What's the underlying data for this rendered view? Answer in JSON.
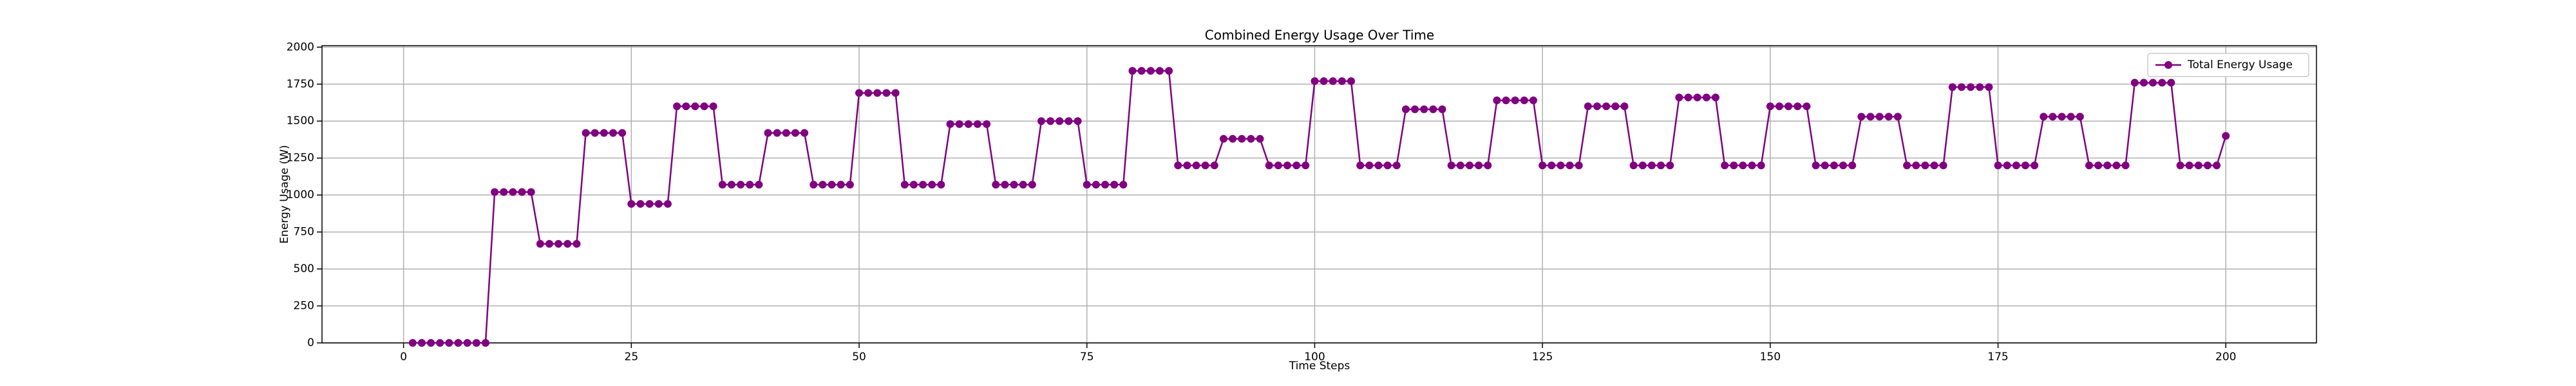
{
  "chart_data": {
    "type": "line",
    "title": "Combined Energy Usage Over Time",
    "x_label": "Time Steps",
    "y_label": "Energy Usage (W)",
    "x": [
      1,
      2,
      3,
      4,
      5,
      6,
      7,
      8,
      9,
      10,
      11,
      12,
      13,
      14,
      15,
      16,
      17,
      18,
      19,
      20,
      21,
      22,
      23,
      24,
      25,
      26,
      27,
      28,
      29,
      30,
      31,
      32,
      33,
      34,
      35,
      36,
      37,
      38,
      39,
      40,
      41,
      42,
      43,
      44,
      45,
      46,
      47,
      48,
      49,
      50,
      51,
      52,
      53,
      54,
      55,
      56,
      57,
      58,
      59,
      60,
      61,
      62,
      63,
      64,
      65,
      66,
      67,
      68,
      69,
      70,
      71,
      72,
      73,
      74,
      75,
      76,
      77,
      78,
      79,
      80,
      81,
      82,
      83,
      84,
      85,
      86,
      87,
      88,
      89,
      90,
      91,
      92,
      93,
      94,
      95,
      96,
      97,
      98,
      99,
      100,
      101,
      102,
      103,
      104,
      105,
      106,
      107,
      108,
      109,
      110,
      111,
      112,
      113,
      114,
      115,
      116,
      117,
      118,
      119,
      120,
      121,
      122,
      123,
      124,
      125,
      126,
      127,
      128,
      129,
      130,
      131,
      132,
      133,
      134,
      135,
      136,
      137,
      138,
      139,
      140,
      141,
      142,
      143,
      144,
      145,
      146,
      147,
      148,
      149,
      150,
      151,
      152,
      153,
      154,
      155,
      156,
      157,
      158,
      159,
      160,
      161,
      162,
      163,
      164,
      165,
      166,
      167,
      168,
      169,
      170,
      171,
      172,
      173,
      174,
      175,
      176,
      177,
      178,
      179,
      180,
      181,
      182,
      183,
      184,
      185,
      186,
      187,
      188,
      189,
      190,
      191,
      192,
      193,
      194,
      195,
      196,
      197,
      198,
      199,
      200
    ],
    "series": [
      {
        "name": "Total Energy Usage",
        "color": "#800080",
        "values": [
          0,
          0,
          0,
          0,
          0,
          0,
          0,
          0,
          0,
          1020,
          1020,
          1020,
          1020,
          1020,
          670,
          670,
          670,
          670,
          670,
          1420,
          1420,
          1420,
          1420,
          1420,
          940,
          940,
          940,
          940,
          940,
          1600,
          1600,
          1600,
          1600,
          1600,
          1070,
          1070,
          1070,
          1070,
          1070,
          1420,
          1420,
          1420,
          1420,
          1420,
          1070,
          1070,
          1070,
          1070,
          1070,
          1690,
          1690,
          1690,
          1690,
          1690,
          1070,
          1070,
          1070,
          1070,
          1070,
          1480,
          1480,
          1480,
          1480,
          1480,
          1070,
          1070,
          1070,
          1070,
          1070,
          1500,
          1500,
          1500,
          1500,
          1500,
          1070,
          1070,
          1070,
          1070,
          1070,
          1840,
          1840,
          1840,
          1840,
          1840,
          1200,
          1200,
          1200,
          1200,
          1200,
          1380,
          1380,
          1380,
          1380,
          1380,
          1200,
          1200,
          1200,
          1200,
          1200,
          1770,
          1770,
          1770,
          1770,
          1770,
          1200,
          1200,
          1200,
          1200,
          1200,
          1580,
          1580,
          1580,
          1580,
          1580,
          1200,
          1200,
          1200,
          1200,
          1200,
          1640,
          1640,
          1640,
          1640,
          1640,
          1200,
          1200,
          1200,
          1200,
          1200,
          1600,
          1600,
          1600,
          1600,
          1600,
          1200,
          1200,
          1200,
          1200,
          1200,
          1660,
          1660,
          1660,
          1660,
          1660,
          1200,
          1200,
          1200,
          1200,
          1200,
          1600,
          1600,
          1600,
          1600,
          1600,
          1200,
          1200,
          1200,
          1200,
          1200,
          1530,
          1530,
          1530,
          1530,
          1530,
          1200,
          1200,
          1200,
          1200,
          1200,
          1730,
          1730,
          1730,
          1730,
          1730,
          1200,
          1200,
          1200,
          1200,
          1200,
          1530,
          1530,
          1530,
          1530,
          1530,
          1200,
          1200,
          1200,
          1200,
          1200,
          1760,
          1760,
          1760,
          1760,
          1760,
          1200,
          1200,
          1200,
          1200,
          1200,
          1400
        ]
      }
    ],
    "xlim": [
      -8.95,
      209.95
    ],
    "ylim": [
      0,
      2010
    ],
    "xticks": [
      0,
      25,
      50,
      75,
      100,
      125,
      150,
      175,
      200
    ],
    "yticks": [
      0,
      250,
      500,
      750,
      1000,
      1250,
      1500,
      1750,
      2000
    ],
    "grid": true,
    "legend": "upper right"
  }
}
